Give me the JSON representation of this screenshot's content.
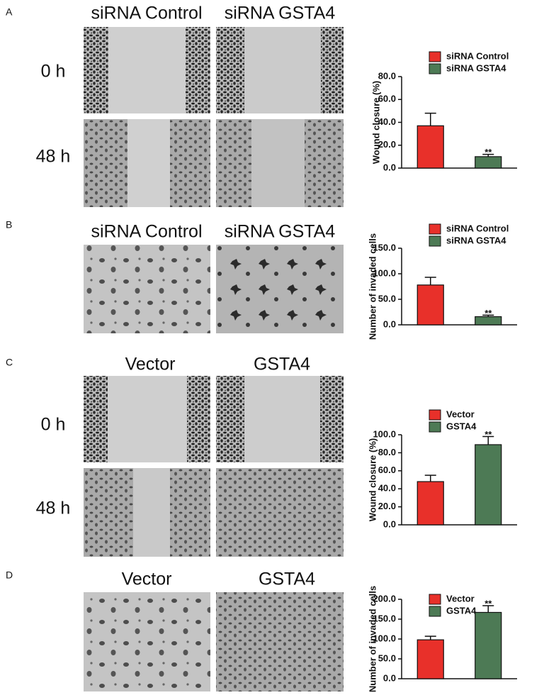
{
  "panels": [
    {
      "label": "A",
      "columns": [
        "siRNA Control",
        "siRNA GSTA4"
      ],
      "rows": [
        "0 h",
        "48 h"
      ]
    },
    {
      "label": "B",
      "columns": [
        "siRNA Control",
        "siRNA GSTA4"
      ]
    },
    {
      "label": "C",
      "columns": [
        "Vector",
        "GSTA4"
      ],
      "rows": [
        "0 h",
        "48 h"
      ]
    },
    {
      "label": "D",
      "columns": [
        "Vector",
        "GSTA4"
      ]
    }
  ],
  "chart_data": [
    {
      "type": "bar",
      "y_label": "Wound closure (%)",
      "ylim": [
        0,
        80
      ],
      "yticks": [
        {
          "value": 0,
          "label": "0.0"
        },
        {
          "value": 20,
          "label": "20.0"
        },
        {
          "value": 40,
          "label": "40.0"
        },
        {
          "value": 60,
          "label": "60.0"
        },
        {
          "value": 80,
          "label": "80.0"
        }
      ],
      "series": [
        {
          "name": "siRNA Control",
          "color": "#e8302a",
          "values": [
            37
          ],
          "errors": [
            11
          ]
        },
        {
          "name": "siRNA GSTA4",
          "color": "#4d7a55",
          "values": [
            10
          ],
          "errors": [
            2
          ],
          "annotation": "**"
        }
      ]
    },
    {
      "type": "bar",
      "y_label": "Number of invaded cells",
      "ylim": [
        0,
        150
      ],
      "yticks": [
        {
          "value": 0,
          "label": "0.0"
        },
        {
          "value": 50,
          "label": "50.0"
        },
        {
          "value": 100,
          "label": "100.0"
        },
        {
          "value": 150,
          "label": "150.0"
        }
      ],
      "series": [
        {
          "name": "siRNA Control",
          "color": "#e8302a",
          "values": [
            78
          ],
          "errors": [
            15
          ]
        },
        {
          "name": "siRNA GSTA4",
          "color": "#4d7a55",
          "values": [
            16
          ],
          "errors": [
            3
          ],
          "annotation": "**"
        }
      ]
    },
    {
      "type": "bar",
      "y_label": "Wound closure (%)",
      "ylim": [
        0,
        100
      ],
      "yticks": [
        {
          "value": 0,
          "label": "0.0"
        },
        {
          "value": 20,
          "label": "20.0"
        },
        {
          "value": 40,
          "label": "40.0"
        },
        {
          "value": 60,
          "label": "60.0"
        },
        {
          "value": 80,
          "label": "80.0"
        },
        {
          "value": 100,
          "label": "100.0"
        }
      ],
      "series": [
        {
          "name": "Vector",
          "color": "#e8302a",
          "values": [
            48
          ],
          "errors": [
            7
          ]
        },
        {
          "name": "GSTA4",
          "color": "#4d7a55",
          "values": [
            89
          ],
          "errors": [
            9
          ],
          "annotation": "**"
        }
      ]
    },
    {
      "type": "bar",
      "y_label": "Number of invaded cells",
      "ylim": [
        0,
        200
      ],
      "yticks": [
        {
          "value": 0,
          "label": "0.0"
        },
        {
          "value": 50,
          "label": "50.0"
        },
        {
          "value": 100,
          "label": "100.0"
        },
        {
          "value": 150,
          "label": "150.0"
        },
        {
          "value": 200,
          "label": "200.0"
        }
      ],
      "series": [
        {
          "name": "Vector",
          "color": "#e8302a",
          "values": [
            98
          ],
          "errors": [
            9
          ]
        },
        {
          "name": "GSTA4",
          "color": "#4d7a55",
          "values": [
            167
          ],
          "errors": [
            17
          ],
          "annotation": "**"
        }
      ]
    }
  ]
}
